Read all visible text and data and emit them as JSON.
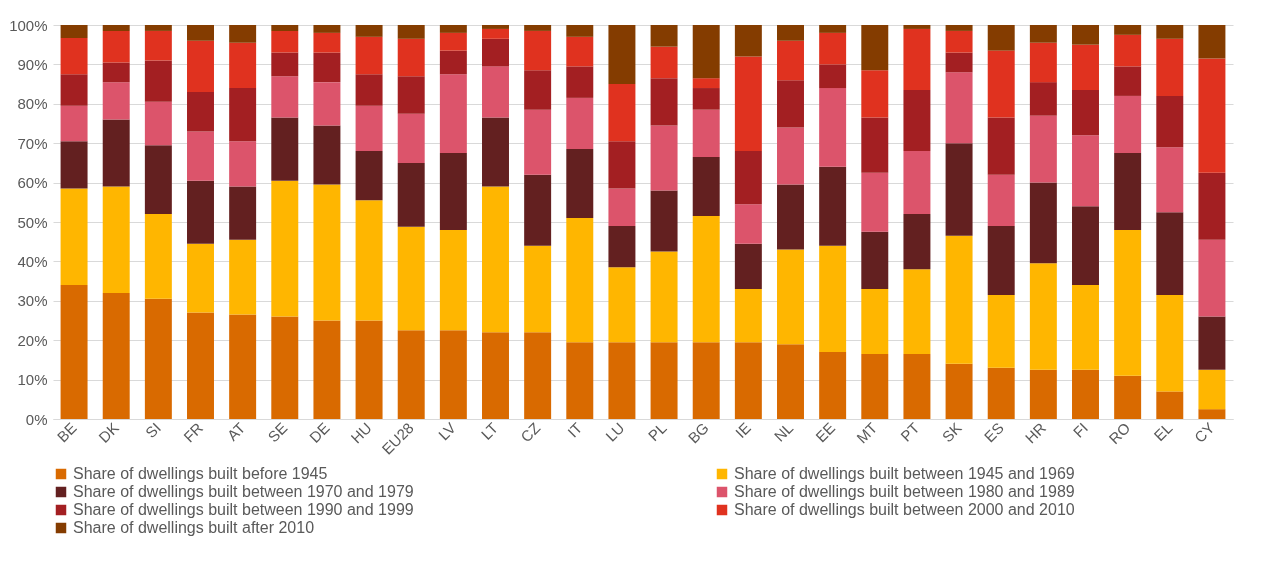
{
  "chart_data": {
    "type": "bar",
    "stacked": true,
    "grid": "y",
    "legend": "bottom",
    "categories": [
      "BE",
      "DK",
      "SI",
      "FR",
      "AT",
      "SE",
      "DE",
      "HU",
      "EU28",
      "LV",
      "LT",
      "CZ",
      "IT",
      "LU",
      "PL",
      "BG",
      "IE",
      "NL",
      "EE",
      "MT",
      "PT",
      "SK",
      "ES",
      "HR",
      "FI",
      "RO",
      "EL",
      "CY"
    ],
    "ylim": [
      0,
      100
    ],
    "yticks": [
      {
        "value": 0,
        "label": "0%"
      },
      {
        "value": 10,
        "label": "10%"
      },
      {
        "value": 20,
        "label": "20%"
      },
      {
        "value": 30,
        "label": "30%"
      },
      {
        "value": 40,
        "label": "40%"
      },
      {
        "value": 50,
        "label": "50%"
      },
      {
        "value": 60,
        "label": "60%"
      },
      {
        "value": 70,
        "label": "70%"
      },
      {
        "value": 80,
        "label": "80%"
      },
      {
        "value": 90,
        "label": "90%"
      },
      {
        "value": 100,
        "label": "100%"
      }
    ],
    "series": [
      {
        "name": "Share of dwellings built before 1945",
        "color": "#d96a00",
        "values": [
          34,
          32,
          30.5,
          27,
          26.5,
          26,
          25,
          25,
          22.5,
          22.5,
          22,
          22,
          19.5,
          19.5,
          19.5,
          19.5,
          19.5,
          19,
          17,
          16.5,
          16.5,
          14,
          13,
          12.5,
          12.5,
          11,
          7,
          2.5
        ]
      },
      {
        "name": "Share of dwellings built between 1945 and 1969",
        "color": "#ffb600",
        "values": [
          24.5,
          27,
          21.5,
          17.5,
          19,
          34.5,
          34.5,
          30.5,
          26.3,
          25.5,
          37,
          22,
          31.5,
          19,
          23,
          32,
          13.5,
          24,
          27,
          16.5,
          21.5,
          32.5,
          18.5,
          27,
          21.5,
          37,
          24.5,
          10
        ]
      },
      {
        "name": "Share of dwellings built between 1970 and 1979",
        "color": "#632020",
        "values": [
          12,
          17,
          17.5,
          16,
          13.5,
          16,
          15,
          12.5,
          16.2,
          19.5,
          17.5,
          18,
          17.5,
          10.5,
          15.5,
          15,
          11.5,
          16.5,
          20,
          14.5,
          14,
          23.5,
          17.5,
          20.5,
          20,
          19.5,
          21,
          13.5
        ]
      },
      {
        "name": "Share of dwellings built between 1980 and 1989",
        "color": "#dc546b",
        "values": [
          9,
          9.5,
          11,
          12.5,
          11.5,
          10.5,
          11,
          11.5,
          12.5,
          20,
          13,
          16.5,
          13,
          9.5,
          16.5,
          12,
          10,
          14.5,
          20,
          15,
          16,
          18,
          13,
          17,
          18,
          14.5,
          16.5,
          19.5
        ]
      },
      {
        "name": "Share of dwellings built between 1990 and 1999",
        "color": "#a31f22",
        "values": [
          8,
          5,
          10.5,
          10,
          13.5,
          6,
          7.5,
          8,
          9.5,
          6,
          7,
          10,
          8,
          12,
          12,
          5.5,
          13.5,
          12,
          6,
          14,
          15.5,
          5,
          14.5,
          8.5,
          11.5,
          7.5,
          13,
          17
        ]
      },
      {
        "name": "Share of dwellings built between 2000 and 2010",
        "color": "#e0321f",
        "values": [
          9.2,
          8,
          7.5,
          13,
          11.5,
          5.5,
          5,
          9.5,
          9.5,
          4.5,
          2.5,
          10,
          7.5,
          14.5,
          8,
          2.5,
          24,
          10,
          8,
          12,
          15.5,
          5.5,
          17,
          10,
          11.5,
          8,
          14.5,
          29
        ]
      },
      {
        "name": "Share of dwellings built after 2010",
        "color": "#843c00",
        "values": [
          3.3,
          1.5,
          1.5,
          4,
          4.5,
          1.5,
          2,
          3,
          3.5,
          2,
          1,
          1.5,
          3,
          15,
          5.5,
          13.5,
          8,
          4,
          2,
          11.5,
          1,
          1.5,
          6.5,
          4.5,
          5,
          2.5,
          3.5,
          8.5
        ]
      }
    ]
  }
}
